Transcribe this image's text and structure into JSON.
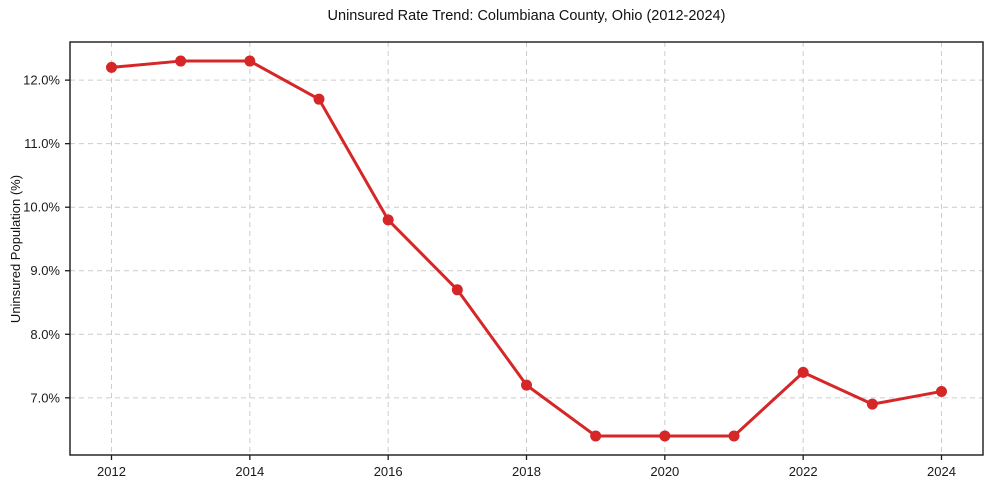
{
  "figure": {
    "background": "#ffffff"
  },
  "chart_data": {
    "type": "line",
    "title": "Uninsured Rate Trend: Columbiana County, Ohio (2012-2024)",
    "xlabel": "",
    "ylabel": "Uninsured Population (%)",
    "series_name": "Uninsured rate",
    "x": [
      2012,
      2013,
      2014,
      2015,
      2016,
      2017,
      2018,
      2019,
      2020,
      2021,
      2022,
      2023,
      2024
    ],
    "values": [
      12.2,
      12.3,
      12.3,
      11.7,
      9.8,
      8.7,
      7.2,
      6.4,
      6.4,
      6.4,
      7.4,
      6.9,
      7.1
    ],
    "xticks": [
      2012,
      2014,
      2016,
      2018,
      2020,
      2022,
      2024
    ],
    "xtick_labels": [
      "2012",
      "2014",
      "2016",
      "2018",
      "2020",
      "2022",
      "2024"
    ],
    "yticks": [
      7,
      8,
      9,
      10,
      11,
      12
    ],
    "ytick_labels": [
      "7.0%",
      "8.0%",
      "9.0%",
      "10.0%",
      "11.0%",
      "12.0%"
    ],
    "xlim": [
      2011.4,
      2024.6
    ],
    "ylim": [
      6.1,
      12.6
    ],
    "grid": true,
    "legend": "none",
    "marker": "circle",
    "line_color": "#d62728",
    "grid_color": "#cccccc",
    "spine_color": "#1a1a1a",
    "tick_label_color": "#1a1a1a"
  }
}
